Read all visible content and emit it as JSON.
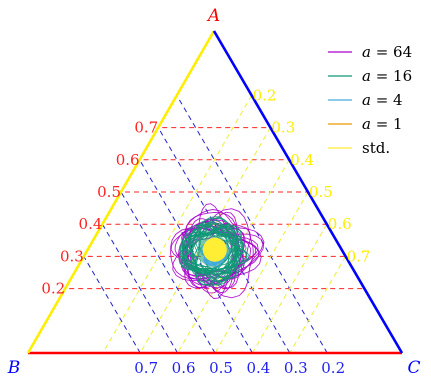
{
  "chart_data": {
    "type": "ternary",
    "vertices": {
      "A": {
        "label": "A",
        "color": "#ff0000"
      },
      "B": {
        "label": "B",
        "color": "#0000ff"
      },
      "C": {
        "label": "C",
        "color": "#0000ff"
      }
    },
    "axes": {
      "A": {
        "ticks": [
          "0.2",
          "0.3",
          "0.4",
          "0.5",
          "0.6",
          "0.7"
        ],
        "color": "#ff2222",
        "grid_color": "#ff2222"
      },
      "B": {
        "ticks": [
          "0.7",
          "0.6",
          "0.5",
          "0.4",
          "0.3",
          "0.2"
        ],
        "color": "#2222ee",
        "grid_color": "#2222cc"
      },
      "C": {
        "ticks": [
          "0.2",
          "0.3",
          "0.4",
          "0.5",
          "0.6",
          "0.7"
        ],
        "color": "#ffee00",
        "grid_color": "#eeee33"
      }
    },
    "edges": {
      "BC": "#ff0000",
      "AB": "#ffee00",
      "AC": "#0000ff"
    },
    "grid": true,
    "grid_style": "dashed",
    "legend_position": "top-right",
    "series": [
      {
        "name": "a = 64",
        "label_var": "a",
        "label_eq": " = 64",
        "color": "#aa00cc",
        "center_A": 0.33,
        "center_B": 0.335,
        "spread": 0.12,
        "loops": 18,
        "seed": 7
      },
      {
        "name": "a = 16",
        "label_var": "a",
        "label_eq": " = 16",
        "color": "#119977",
        "center_A": 0.335,
        "center_B": 0.335,
        "spread": 0.085,
        "loops": 28,
        "seed": 11
      },
      {
        "name": "a = 4",
        "label_var": "a",
        "label_eq": " = 4",
        "color": "#44aadd",
        "center_A": 0.33,
        "center_B": 0.335,
        "spread": 0.035,
        "loops": 18,
        "seed": 19
      },
      {
        "name": "a = 1",
        "label_var": "a",
        "label_eq": " = 1",
        "color": "#ee9900",
        "center_A": 0.335,
        "center_B": 0.335,
        "spread": 0.018,
        "loops": 12,
        "seed": 23
      },
      {
        "name": "std.",
        "label_var": "",
        "label_eq": "std.",
        "color": "#ffee33",
        "center_A": 0.333,
        "center_B": 0.333,
        "spread": 0.0,
        "loops": 0,
        "seed": 0,
        "marker": "dot"
      }
    ]
  }
}
